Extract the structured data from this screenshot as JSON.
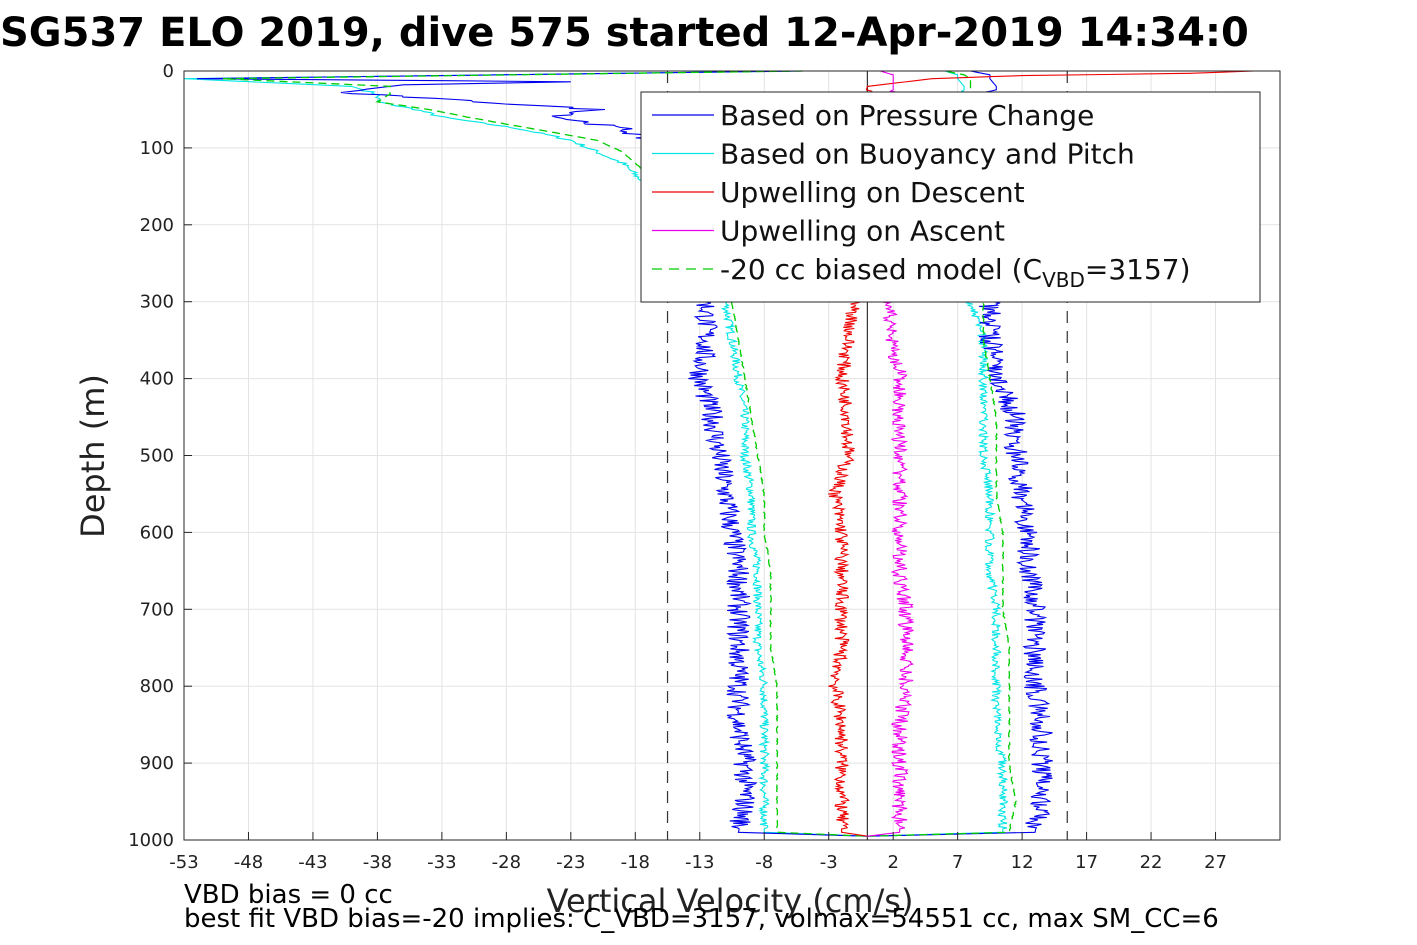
{
  "chart_data": {
    "type": "line",
    "title": "SG537 ELO 2019, dive 575 started 12-Apr-2019 14:34:0",
    "xlabel": "Vertical Velocity (cm/s)",
    "ylabel": "Depth (m)",
    "xlim": [
      -53,
      32
    ],
    "ylim": [
      1000,
      0
    ],
    "xticks": [
      -53,
      -48,
      -43,
      -38,
      -33,
      -28,
      -23,
      -18,
      -13,
      -8,
      -3,
      2,
      7,
      12,
      17,
      22,
      27
    ],
    "yticks": [
      0,
      100,
      200,
      300,
      400,
      500,
      600,
      700,
      800,
      900,
      1000
    ],
    "grid": true,
    "legend_position": "top-right",
    "reference_lines": {
      "solid_x": 0,
      "dashed_x": [
        -15.5,
        15.5
      ]
    },
    "colors": {
      "pressure": "#0000ee",
      "buoyancy": "#00e5e5",
      "upwell_descent": "#ee0000",
      "upwell_ascent": "#ee00ee",
      "model": "#00cc00",
      "reference": "#333333"
    },
    "legend": [
      {
        "key": "pressure",
        "label": "Based on Pressure Change",
        "dash": false
      },
      {
        "key": "buoyancy",
        "label": "Based on Buoyancy and Pitch",
        "dash": false
      },
      {
        "key": "upwell_descent",
        "label": "Upwelling on Descent",
        "dash": false
      },
      {
        "key": "upwell_ascent",
        "label": "Upwelling on Ascent",
        "dash": false
      },
      {
        "key": "model",
        "label_main": "-20 cc biased model (C",
        "label_sub": "VBD",
        "label_end": "=3157)",
        "dash": true
      }
    ],
    "series": [
      {
        "key": "pressure",
        "name": "Based on Pressure Change",
        "segments": [
          {
            "depth": [
              0,
              10,
              14,
              18,
              28,
              40,
              50,
              60,
              75,
              90,
              105,
              120,
              150,
              200,
              250,
              300,
              350,
              400,
              450,
              500,
              550,
              600,
              650,
              700,
              750,
              800,
              850,
              900,
              950,
              990,
              995
            ],
            "vel": [
              -5,
              -52,
              -23,
              -36,
              -41,
              -30,
              -21,
              -24,
              -19,
              -17,
              -16.5,
              -16,
              -15,
              -14,
              -13.5,
              -12.5,
              -12.5,
              -13,
              -12,
              -11.5,
              -11,
              -10.5,
              -10,
              -10,
              -10,
              -10,
              -10,
              -9.5,
              -9.5,
              -10,
              0
            ]
          },
          {
            "depth": [
              995,
              990,
              950,
              900,
              850,
              800,
              750,
              700,
              650,
              600,
              550,
              500,
              450,
              400,
              350,
              300,
              250,
              200,
              150,
              100,
              50,
              20,
              10,
              5,
              0
            ],
            "vel": [
              0,
              13,
              13.5,
              13.5,
              13.5,
              13,
              13,
              13,
              12.5,
              12.5,
              12,
              11.5,
              11.5,
              10,
              9.5,
              9.5,
              9.5,
              9.5,
              9.5,
              9.5,
              10,
              10,
              9.5,
              9.5,
              8
            ]
          }
        ]
      },
      {
        "key": "buoyancy",
        "name": "Based on Buoyancy and Pitch",
        "segments": [
          {
            "depth": [
              0,
              10,
              20,
              30,
              40,
              50,
              60,
              75,
              90,
              105,
              120,
              150,
              200,
              250,
              300,
              350,
              400,
              450,
              500,
              550,
              600,
              650,
              700,
              750,
              800,
              850,
              900,
              950,
              990,
              995
            ],
            "vel": [
              -5,
              -53,
              -40,
              -38,
              -38,
              -35,
              -33,
              -27,
              -23,
              -21,
              -19,
              -17,
              -14,
              -12.5,
              -11,
              -10.5,
              -10,
              -9.5,
              -9.5,
              -9,
              -9,
              -8.5,
              -8.5,
              -8.5,
              -8,
              -8,
              -8,
              -8,
              -8,
              0
            ]
          },
          {
            "depth": [
              995,
              990,
              950,
              900,
              850,
              800,
              750,
              700,
              650,
              600,
              550,
              500,
              450,
              400,
              350,
              300,
              250,
              200,
              150,
              100,
              50,
              20,
              10,
              5,
              0
            ],
            "vel": [
              0,
              10.5,
              10.5,
              10.5,
              10,
              10,
              10,
              10,
              9.5,
              9.5,
              9.5,
              9,
              9,
              9,
              9,
              8,
              8,
              7.5,
              7.5,
              7.5,
              7.5,
              7.5,
              7,
              7,
              6
            ]
          }
        ]
      },
      {
        "key": "upwell_descent",
        "name": "Upwelling on Descent",
        "segments": [
          {
            "depth": [
              0,
              3,
              6,
              10,
              20,
              50,
              100,
              150,
              200,
              250,
              300,
              350,
              400,
              450,
              500,
              550,
              600,
              650,
              700,
              750,
              800,
              850,
              900,
              950,
              990,
              995
            ],
            "vel": [
              30,
              25,
              12,
              5,
              0,
              -0.5,
              -0.5,
              -0.5,
              -1,
              -1,
              -1,
              -1.5,
              -2,
              -1.5,
              -1.5,
              -2.5,
              -2,
              -2,
              -2,
              -2,
              -2.5,
              -2,
              -2,
              -2,
              -2,
              0
            ]
          }
        ]
      },
      {
        "key": "upwell_ascent",
        "name": "Upwelling on Ascent",
        "segments": [
          {
            "depth": [
              995,
              990,
              950,
              900,
              850,
              800,
              750,
              700,
              650,
              600,
              550,
              500,
              450,
              400,
              350,
              300,
              250,
              200,
              150,
              100,
              50,
              20,
              10,
              5,
              0
            ],
            "vel": [
              0,
              2.5,
              2.5,
              2.5,
              2.5,
              3,
              3,
              3,
              2.5,
              2.5,
              2.5,
              2.5,
              2.5,
              2.5,
              2,
              1.5,
              1.5,
              1.5,
              1.5,
              1.5,
              2,
              2,
              2,
              2,
              1
            ]
          }
        ]
      },
      {
        "key": "model",
        "name": "-20 cc biased model (C_VBD=3157)",
        "segments": [
          {
            "depth": [
              0,
              10,
              20,
              30,
              40,
              50,
              60,
              75,
              90,
              105,
              120,
              150,
              200,
              250,
              300,
              350,
              400,
              450,
              500,
              550,
              600,
              650,
              700,
              750,
              800,
              850,
              900,
              950,
              990,
              995
            ],
            "vel": [
              -5,
              -50,
              -37,
              -37,
              -38,
              -34,
              -31,
              -26,
              -21,
              -19,
              -18,
              -16,
              -13,
              -12,
              -10.5,
              -10,
              -9.5,
              -9,
              -8.5,
              -8,
              -8,
              -7.5,
              -7.5,
              -7.5,
              -7,
              -7,
              -7,
              -7,
              -7,
              0
            ]
          },
          {
            "depth": [
              995,
              990,
              950,
              900,
              850,
              800,
              750,
              700,
              650,
              600,
              550,
              500,
              450,
              400,
              350,
              300,
              250,
              200,
              150,
              100,
              50,
              20,
              10,
              5,
              0
            ],
            "vel": [
              0,
              11,
              11.5,
              11,
              11,
              11,
              11,
              10.5,
              10.5,
              10.5,
              10,
              10,
              10,
              9.5,
              9,
              9,
              8.5,
              8.5,
              8.5,
              8.5,
              8,
              8,
              8,
              7.5,
              6
            ]
          }
        ]
      }
    ],
    "footer": [
      "VBD bias = 0 cc",
      "best fit VBD bias=-20 implies: C_VBD=3157, volmax=54551 cc, max SM_CC=6"
    ]
  }
}
